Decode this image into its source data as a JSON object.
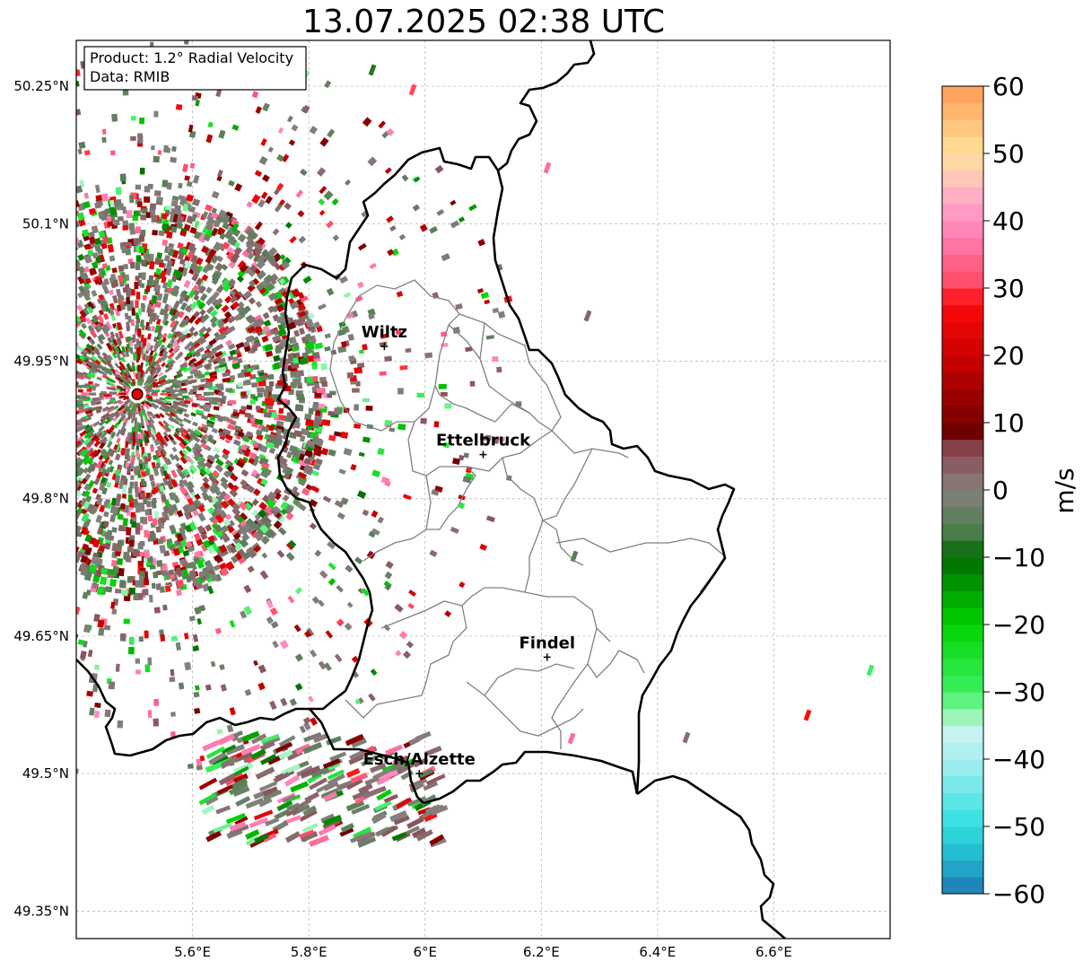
{
  "title": "13.07.2025 02:38 UTC",
  "info_box": {
    "product": "Product: 1.2° Radial Velocity",
    "data_source": "Data: RMIB"
  },
  "map": {
    "lon_range": [
      5.4,
      6.8
    ],
    "lat_range": [
      49.32,
      50.3
    ],
    "lat_ticks": [
      {
        "value": 50.25,
        "label": "50.25°N"
      },
      {
        "value": 50.1,
        "label": "50.1°N"
      },
      {
        "value": 49.95,
        "label": "49.95°N"
      },
      {
        "value": 49.8,
        "label": "49.8°N"
      },
      {
        "value": 49.65,
        "label": "49.65°N"
      },
      {
        "value": 49.5,
        "label": "49.5°N"
      },
      {
        "value": 49.35,
        "label": "49.35°N"
      }
    ],
    "lon_ticks": [
      {
        "value": 5.6,
        "label": "5.6°E"
      },
      {
        "value": 5.8,
        "label": "5.8°E"
      },
      {
        "value": 6.0,
        "label": "6°E"
      },
      {
        "value": 6.2,
        "label": "6.2°E"
      },
      {
        "value": 6.4,
        "label": "6.4°E"
      },
      {
        "value": 6.6,
        "label": "6.6°E"
      }
    ],
    "radar_site": {
      "lon": 5.505,
      "lat": 49.914,
      "color": "#e00000"
    },
    "cities": [
      {
        "name": "Wiltz",
        "lon": 5.93,
        "lat": 49.966
      },
      {
        "name": "Ettelbruck",
        "lon": 6.1,
        "lat": 49.848
      },
      {
        "name": "Findel",
        "lon": 6.21,
        "lat": 49.627
      },
      {
        "name": "Esch/Alzette",
        "lon": 5.99,
        "lat": 49.5
      }
    ]
  },
  "colorbar": {
    "label": "m/s",
    "min": -60,
    "max": 60,
    "ticks": [
      {
        "value": 60,
        "label": "60"
      },
      {
        "value": 50,
        "label": "50"
      },
      {
        "value": 40,
        "label": "40"
      },
      {
        "value": 30,
        "label": "30"
      },
      {
        "value": 20,
        "label": "20"
      },
      {
        "value": 10,
        "label": "10"
      },
      {
        "value": 0,
        "label": "0"
      },
      {
        "value": -10,
        "label": "−10"
      },
      {
        "value": -20,
        "label": "−20"
      },
      {
        "value": -30,
        "label": "−30"
      },
      {
        "value": -40,
        "label": "−40"
      },
      {
        "value": -50,
        "label": "−50"
      },
      {
        "value": -60,
        "label": "−60"
      }
    ],
    "color_stops": [
      {
        "v": -60,
        "c": "#1f77b4"
      },
      {
        "v": -55,
        "c": "#22b3cc"
      },
      {
        "v": -50,
        "c": "#2fdfdf"
      },
      {
        "v": -40,
        "c": "#a8eef0"
      },
      {
        "v": -36,
        "c": "#c6f3f1"
      },
      {
        "v": -33,
        "c": "#8ff5a8"
      },
      {
        "v": -30,
        "c": "#3cf060"
      },
      {
        "v": -20,
        "c": "#00d300"
      },
      {
        "v": -10,
        "c": "#006b00"
      },
      {
        "v": -6,
        "c": "#4e7e4e"
      },
      {
        "v": 0,
        "c": "#868080"
      },
      {
        "v": 6,
        "c": "#8a4a52"
      },
      {
        "v": 8,
        "c": "#6a0000"
      },
      {
        "v": 20,
        "c": "#cc0000"
      },
      {
        "v": 28,
        "c": "#ff0a0a"
      },
      {
        "v": 30,
        "c": "#ff4660"
      },
      {
        "v": 40,
        "c": "#ff8fc8"
      },
      {
        "v": 45,
        "c": "#ffbbc0"
      },
      {
        "v": 50,
        "c": "#ffe29a"
      },
      {
        "v": 60,
        "c": "#ff9b55"
      }
    ]
  }
}
